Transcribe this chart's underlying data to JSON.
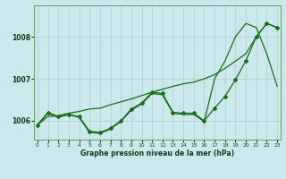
{
  "xlabel": "Graphe pression niveau de la mer (hPa)",
  "background_color": "#cce8ec",
  "grid_color": "#aacdd2",
  "line_color": "#1a6b1a",
  "x_ticks": [
    0,
    1,
    2,
    3,
    4,
    5,
    6,
    7,
    8,
    9,
    10,
    11,
    12,
    13,
    14,
    15,
    16,
    17,
    18,
    19,
    20,
    21,
    22,
    23
  ],
  "ylim": [
    1005.55,
    1008.75
  ],
  "yticks": [
    1006,
    1007,
    1008
  ],
  "series_markers": [
    1005.9,
    1006.2,
    1006.1,
    1006.15,
    1006.1,
    1005.75,
    1005.72,
    1005.82,
    1006.0,
    1006.28,
    1006.42,
    1006.68,
    1006.65,
    1006.2,
    1006.18,
    1006.18,
    1006.0,
    1006.3,
    1006.58,
    1006.98,
    1007.43,
    1008.0,
    1008.32,
    1008.22
  ],
  "series_upper": [
    1005.9,
    1006.1,
    1006.12,
    1006.18,
    1006.22,
    1006.28,
    1006.3,
    1006.38,
    1006.45,
    1006.52,
    1006.6,
    1006.68,
    1006.75,
    1006.82,
    1006.88,
    1006.92,
    1007.0,
    1007.1,
    1007.25,
    1007.42,
    1007.6,
    1008.0,
    1008.32,
    1008.22
  ],
  "series_lower": [
    1005.9,
    1006.18,
    1006.08,
    1006.15,
    1006.08,
    1005.72,
    1005.7,
    1005.8,
    1005.98,
    1006.25,
    1006.4,
    1006.65,
    1006.62,
    1006.18,
    1006.15,
    1006.15,
    1005.98,
    1007.0,
    1007.43,
    1008.0,
    1008.32,
    1008.22,
    1007.6,
    1006.82
  ]
}
